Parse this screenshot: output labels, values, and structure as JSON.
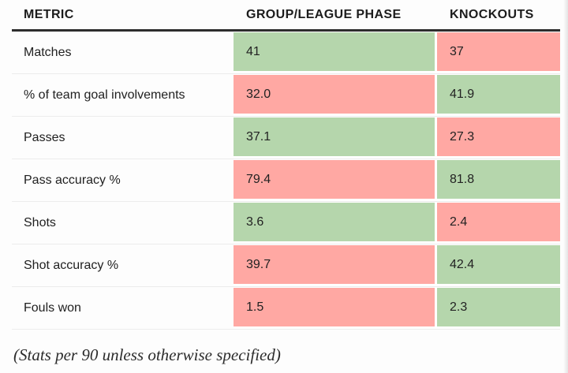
{
  "table": {
    "headers": {
      "metric": "METRIC",
      "group": "GROUP/LEAGUE PHASE",
      "knockouts": "KNOCKOUTS"
    }
  },
  "colors": {
    "better": "#b5d6ac",
    "worse": "#ffa8a3",
    "header_rule": "#2d2d2d"
  },
  "footer": {
    "note": "(Stats per 90 unless otherwise specified)"
  },
  "chart_data": {
    "type": "table",
    "columns": [
      "METRIC",
      "GROUP/LEAGUE PHASE",
      "KNOCKOUTS"
    ],
    "color_coding": {
      "#b5d6ac": "better value (green)",
      "#ffa8a3": "worse value (red)"
    },
    "note": "(Stats per 90 unless otherwise specified)",
    "rows": [
      {
        "metric": "Matches",
        "group": "41",
        "group_color": "#b5d6ac",
        "knockouts": "37",
        "knockouts_color": "#ffa8a3"
      },
      {
        "metric": "% of team goal involvements",
        "group": "32.0",
        "group_color": "#ffa8a3",
        "knockouts": "41.9",
        "knockouts_color": "#b5d6ac"
      },
      {
        "metric": "Passes",
        "group": "37.1",
        "group_color": "#b5d6ac",
        "knockouts": "27.3",
        "knockouts_color": "#ffa8a3"
      },
      {
        "metric": "Pass accuracy %",
        "group": "79.4",
        "group_color": "#ffa8a3",
        "knockouts": "81.8",
        "knockouts_color": "#b5d6ac"
      },
      {
        "metric": "Shots",
        "group": "3.6",
        "group_color": "#b5d6ac",
        "knockouts": "2.4",
        "knockouts_color": "#ffa8a3"
      },
      {
        "metric": "Shot accuracy %",
        "group": "39.7",
        "group_color": "#ffa8a3",
        "knockouts": "42.4",
        "knockouts_color": "#b5d6ac"
      },
      {
        "metric": "Fouls won",
        "group": "1.5",
        "group_color": "#ffa8a3",
        "knockouts": "2.3",
        "knockouts_color": "#b5d6ac"
      }
    ]
  }
}
